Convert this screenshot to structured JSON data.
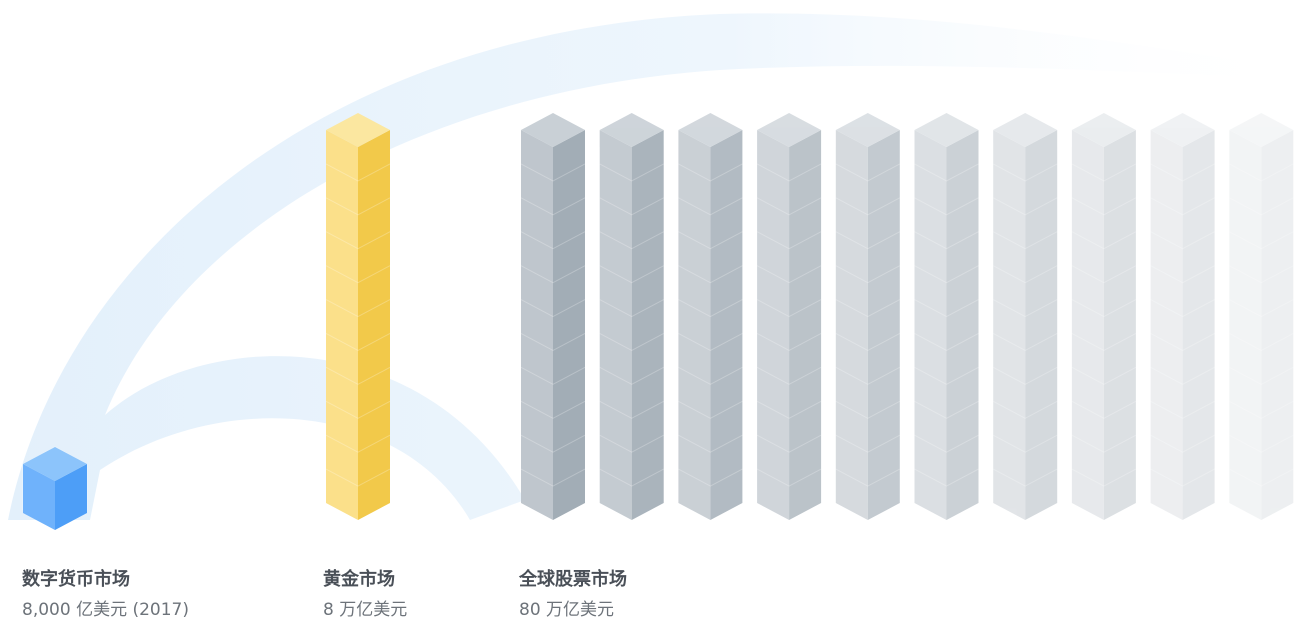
{
  "items": [
    {
      "title": "数字货币市场",
      "value": "8,000 亿美元 (2017)"
    },
    {
      "title": "黄金市场",
      "value": "8 万亿美元"
    },
    {
      "title": "全球股票市场",
      "value": "80 万亿美元"
    }
  ]
}
